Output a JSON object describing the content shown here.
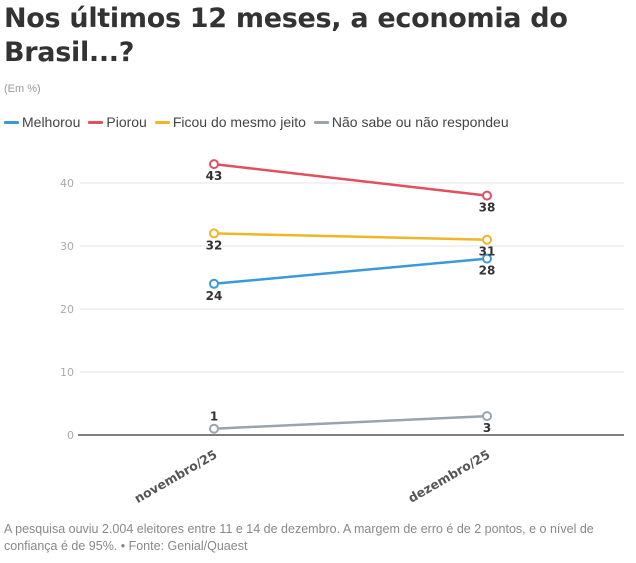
{
  "header": {
    "title": "Nos últimos 12 meses, a economia do Brasil...?",
    "subtitle": "(Em %)"
  },
  "legend": [
    {
      "label": "Melhorou",
      "color": "#3a9ad9"
    },
    {
      "label": "Piorou",
      "color": "#e0505f"
    },
    {
      "label": "Ficou do mesmo jeito",
      "color": "#f0b625"
    },
    {
      "label": "Não sabe ou não respondeu",
      "color": "#98a4ae"
    }
  ],
  "footnote": "A pesquisa ouviu 2.004 eleitores entre 11 e 14 de dezembro. A margem de erro é de 2 pontos, e o nível de confiança é de 95%. • Fonte: Genial/Quaest",
  "chart_data": {
    "type": "line",
    "title": "Nos últimos 12 meses, a economia do Brasil...?",
    "subtitle": "(Em %)",
    "xlabel": "",
    "ylabel": "",
    "categories": [
      "novembro/25",
      "dezembro/25"
    ],
    "ylim": [
      0,
      45
    ],
    "yticks": [
      0,
      10,
      20,
      30,
      40
    ],
    "grid": true,
    "legend_position": "top-left",
    "series": [
      {
        "name": "Melhorou",
        "color": "#3a9ad9",
        "values": [
          24,
          28
        ],
        "label_pos": [
          "below",
          "below"
        ]
      },
      {
        "name": "Piorou",
        "color": "#e0505f",
        "values": [
          43,
          38
        ],
        "label_pos": [
          "below",
          "below"
        ]
      },
      {
        "name": "Ficou do mesmo jeito",
        "color": "#f0b625",
        "values": [
          32,
          31
        ],
        "label_pos": [
          "below",
          "below"
        ]
      },
      {
        "name": "Não sabe ou não respondeu",
        "color": "#98a4ae",
        "values": [
          1,
          3
        ],
        "label_pos": [
          "above",
          "below"
        ]
      }
    ]
  }
}
